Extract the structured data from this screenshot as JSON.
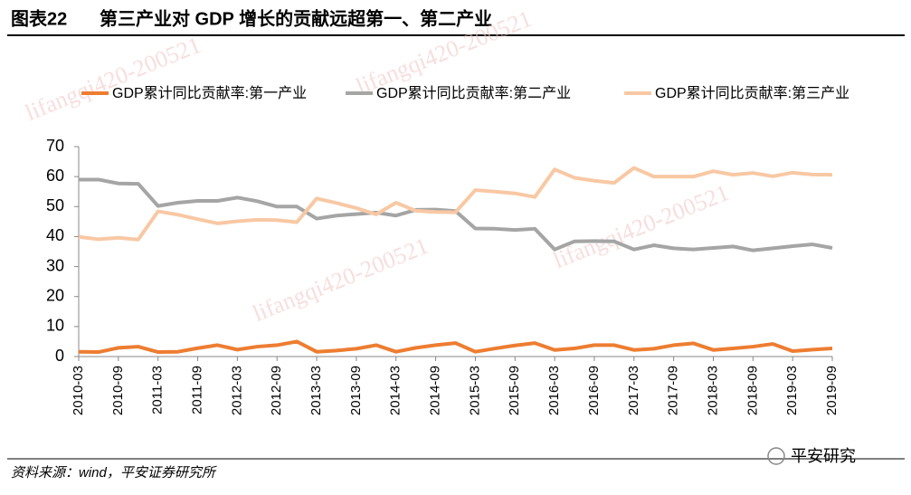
{
  "header": {
    "figure": "图表22",
    "title": "第三产业对 GDP 增长的贡献远超第一、第二产业"
  },
  "chart_data": {
    "type": "line",
    "categories": [
      "2010-03",
      null,
      "2010-09",
      null,
      "2011-03",
      null,
      "2011-09",
      null,
      "2012-03",
      null,
      "2012-09",
      null,
      "2013-03",
      null,
      "2013-09",
      null,
      "2014-03",
      null,
      "2014-09",
      null,
      "2015-03",
      null,
      "2015-09",
      null,
      "2016-03",
      null,
      "2016-09",
      null,
      "2017-03",
      null,
      "2017-09",
      null,
      "2018-03",
      null,
      "2018-09",
      null,
      "2019-03",
      null,
      "2019-09"
    ],
    "series": [
      {
        "name": "GDP累计同比贡献率:第一产业",
        "color": "#ed7d31",
        "values": [
          1.6,
          1.5,
          2.9,
          3.3,
          1.5,
          1.6,
          2.8,
          3.8,
          2.3,
          3.3,
          3.8,
          5.0,
          1.6,
          2.0,
          2.6,
          3.8,
          1.6,
          2.9,
          3.8,
          4.5,
          1.6,
          2.7,
          3.7,
          4.5,
          2.2,
          2.7,
          3.8,
          3.8,
          2.2,
          2.6,
          3.8,
          4.4,
          2.2,
          2.7,
          3.3,
          4.2,
          1.8,
          2.3,
          2.7
        ]
      },
      {
        "name": "GDP累计同比贡献率:第二产业",
        "color": "#a5a5a5",
        "values": [
          59.0,
          59.0,
          57.7,
          57.6,
          50.2,
          51.3,
          51.9,
          51.9,
          53.0,
          51.8,
          50.0,
          50.0,
          46.0,
          47.0,
          47.5,
          48.0,
          47.0,
          48.9,
          49.0,
          48.5,
          42.7,
          42.6,
          42.2,
          42.6,
          35.7,
          38.4,
          38.5,
          38.4,
          35.7,
          37.1,
          36.1,
          35.7,
          36.2,
          36.7,
          35.4,
          36.1,
          36.8,
          37.4,
          36.2
        ]
      },
      {
        "name": "GDP累计同比贡献率:第三产业",
        "color": "#f8c8a4",
        "values": [
          39.9,
          39.1,
          39.6,
          39.0,
          48.4,
          47.3,
          45.8,
          44.4,
          45.1,
          45.6,
          45.5,
          44.8,
          52.7,
          51.2,
          49.5,
          47.4,
          51.3,
          48.6,
          48.2,
          48.1,
          55.5,
          55.0,
          54.4,
          53.2,
          62.4,
          59.6,
          58.6,
          57.9,
          62.9,
          60.0,
          60.0,
          60.0,
          61.8,
          60.6,
          61.2,
          60.1,
          61.3,
          60.7,
          60.6
        ]
      }
    ],
    "ylim": [
      0,
      70
    ],
    "yticks": [
      0,
      10,
      20,
      30,
      40,
      50,
      60,
      70
    ],
    "grid": false,
    "legend": "top"
  },
  "footer": {
    "source": "资料来源：wind，平安证券研究所",
    "logo": "平安研究"
  },
  "watermark": "lifangqi420-200521"
}
